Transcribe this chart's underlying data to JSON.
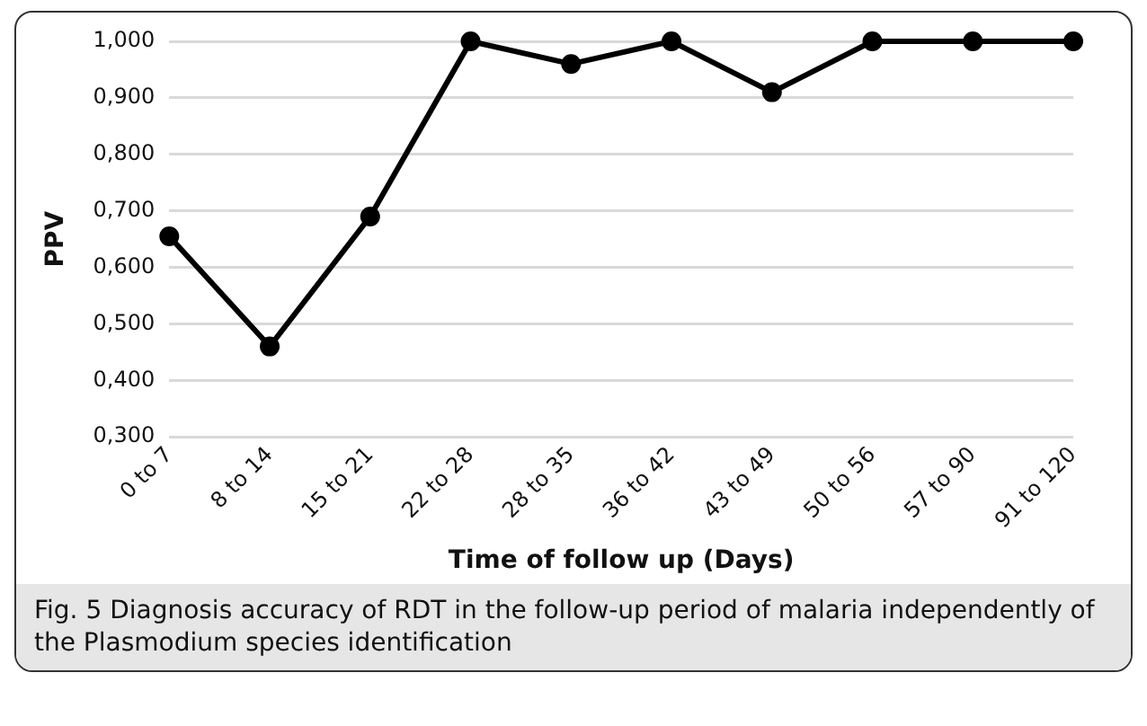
{
  "chart_data": {
    "type": "line",
    "xlabel": "Time of follow up (Days)",
    "ylabel": "PPV",
    "categories": [
      "0 to 7",
      "8 to 14",
      "15 to 21",
      "22 to 28",
      "28 to 35",
      "36 to 42",
      "43 to 49",
      "50 to 56",
      "57 to 90",
      "91 to 120"
    ],
    "series": [
      {
        "color": "#000000",
        "values": [
          0.655,
          0.46,
          0.69,
          1.0,
          0.96,
          1.0,
          0.91,
          1.0,
          1.0,
          1.0
        ]
      }
    ],
    "ylim": [
      0.3,
      1.0
    ],
    "yticks": [
      {
        "value": 0.3,
        "label": "0,300"
      },
      {
        "value": 0.4,
        "label": "0,400"
      },
      {
        "value": 0.5,
        "label": "0,500"
      },
      {
        "value": 0.6,
        "label": "0,600"
      },
      {
        "value": 0.7,
        "label": "0,700"
      },
      {
        "value": 0.8,
        "label": "0,800"
      },
      {
        "value": 0.9,
        "label": "0,900"
      },
      {
        "value": 1.0,
        "label": "1,000"
      }
    ],
    "grid": "y",
    "marker": "circle",
    "line_style": "solid",
    "legend": false,
    "annotations": [
      "Fig. 5 Diagnosis accuracy of RDT in the follow-up period of malaria independently of the Plasmodium species identification"
    ]
  }
}
